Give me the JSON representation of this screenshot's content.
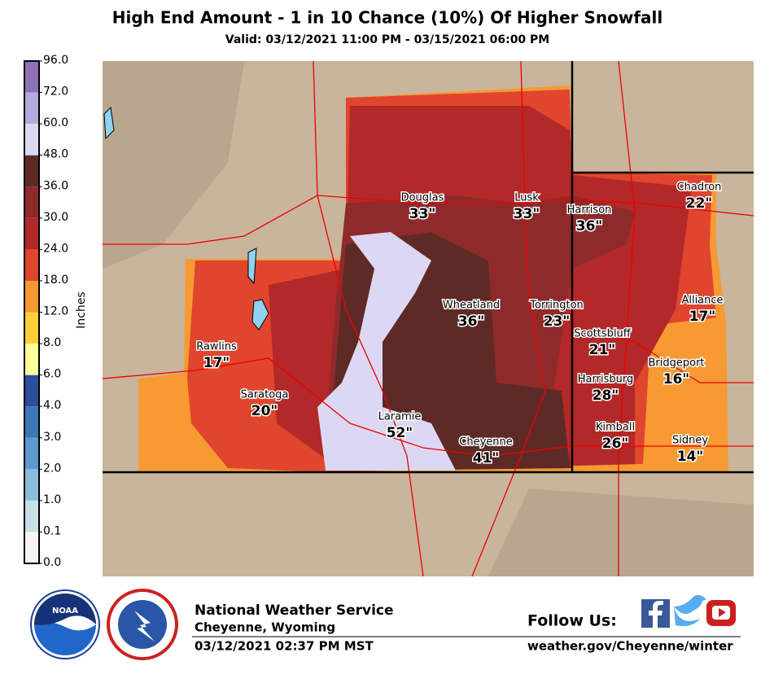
{
  "header": {
    "title": "High End Amount - 1 in 10 Chance (10%) Of Higher Snowfall",
    "subtitle": "Valid: 03/12/2021 11:00 PM - 03/15/2021 06:00 PM"
  },
  "legend": {
    "title": "Inches",
    "ticks": [
      {
        "value": 0,
        "label": "0.0"
      },
      {
        "value": 0.1,
        "label": "0.1"
      },
      {
        "value": 1,
        "label": "1.0"
      },
      {
        "value": 2,
        "label": "2.0"
      },
      {
        "value": 3,
        "label": "3.0"
      },
      {
        "value": 4,
        "label": "4.0"
      },
      {
        "value": 6,
        "label": "6.0"
      },
      {
        "value": 8,
        "label": "8.0"
      },
      {
        "value": 12,
        "label": "12.0"
      },
      {
        "value": 18,
        "label": "18.0"
      },
      {
        "value": 24,
        "label": "24.0"
      },
      {
        "value": 30,
        "label": "30.0"
      },
      {
        "value": 36,
        "label": "36.0"
      },
      {
        "value": 48,
        "label": "48.0"
      },
      {
        "value": 60,
        "label": "60.0"
      },
      {
        "value": 72,
        "label": "72.0"
      },
      {
        "value": 96,
        "label": "96.0"
      }
    ],
    "colors": [
      "#f5f5f5",
      "#c8dfe8",
      "#8cbcdc",
      "#5b9bd0",
      "#3a78b8",
      "#2b4f9c",
      "#ffff99",
      "#fdd03a",
      "#f79a33",
      "#e0452e",
      "#b32828",
      "#8f2a2a",
      "#5e2a25",
      "#dcd7f2",
      "#b5a8dc",
      "#8f71b8"
    ]
  },
  "cities": [
    {
      "name": "Douglas",
      "amount": 33,
      "amount_label": "33\""
    },
    {
      "name": "Lusk",
      "amount": 33,
      "amount_label": "33\""
    },
    {
      "name": "Harrison",
      "amount": 36,
      "amount_label": "36\""
    },
    {
      "name": "Chadron",
      "amount": 22,
      "amount_label": "22\""
    },
    {
      "name": "Wheatland",
      "amount": 36,
      "amount_label": "36\""
    },
    {
      "name": "Torrington",
      "amount": 23,
      "amount_label": "23\""
    },
    {
      "name": "Alliance",
      "amount": 17,
      "amount_label": "17\""
    },
    {
      "name": "Scottsbluff",
      "amount": 21,
      "amount_label": "21\""
    },
    {
      "name": "Rawlins",
      "amount": 17,
      "amount_label": "17\""
    },
    {
      "name": "Bridgeport",
      "amount": 16,
      "amount_label": "16\""
    },
    {
      "name": "Harrisburg",
      "amount": 28,
      "amount_label": "28\""
    },
    {
      "name": "Saratoga",
      "amount": 20,
      "amount_label": "20\""
    },
    {
      "name": "Laramie",
      "amount": 52,
      "amount_label": "52\""
    },
    {
      "name": "Kimball",
      "amount": 26,
      "amount_label": "26\""
    },
    {
      "name": "Sidney",
      "amount": 14,
      "amount_label": "14\""
    },
    {
      "name": "Cheyenne",
      "amount": 41,
      "amount_label": "41\""
    }
  ],
  "footer": {
    "logo_text": "NOAA",
    "org": "National Weather Service",
    "office": "Cheyenne, Wyoming",
    "issued": "03/12/2021 02:37 PM MST",
    "follow": "Follow Us:",
    "url": "weather.gov/Cheyenne/winter"
  }
}
